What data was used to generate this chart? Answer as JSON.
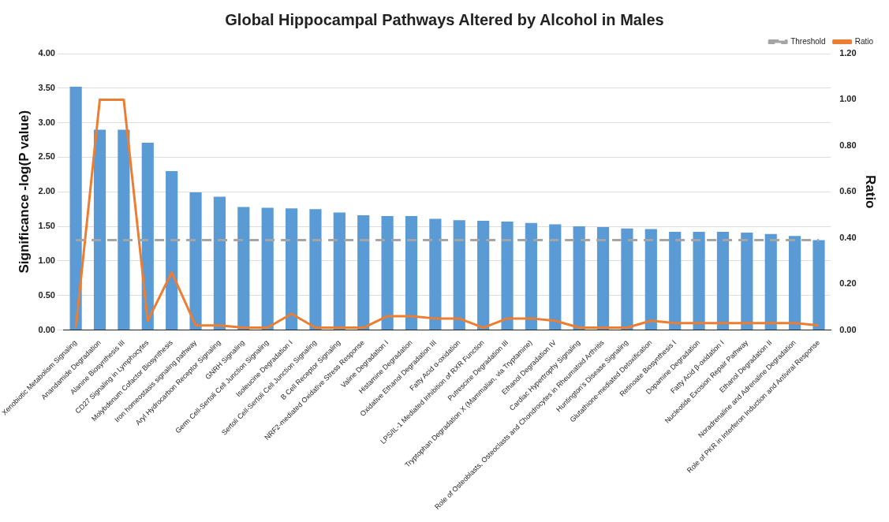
{
  "chart_data": {
    "type": "bar",
    "title": "Global Hippocampal Pathways Altered by Alcohol in Males",
    "ylabel": "Significance -log(P value)",
    "y2label": "Ratio",
    "categories": [
      "Xenobiotic Metabolism Signaling",
      "Anandamide Degradation",
      "Alanine Biosynthesis III",
      "CD27 Signaling in Lymphocytes",
      "Molybdenum Cofactor Biosynthesis",
      "Iron homeostasis signaling pathway",
      "Aryl Hydrocarbon Receptor Signaling",
      "GNRH Signaling",
      "Germ Cell-Sertoli Cell Junction Signaling",
      "Isoleucine Degradation I",
      "Sertoli Cell-Sertoli Cell Junction Signaling",
      "B Cell Receptor Signaling",
      "NRF2-mediated Oxidative Stress Response",
      "Valine Degradation I",
      "Histamine Degradation",
      "Oxidative Ethanol Degradation III",
      "Fatty Acid α-oxidation",
      "LPS/IL-1 Mediated Inhibition of RXR Function",
      "Putrescine Degradation III",
      "Tryptophan Degradation X (Mammalian, via Tryptamine)",
      "Ethanol Degradation IV",
      "Cardiac Hypertrophy Signaling",
      "Role of Osteoblasts, Osteoclasts and Chondrocytes in Rheumatoid Arthritis",
      "Huntington's Disease Signaling",
      "Glutathione-mediated Detoxification",
      "Retinoate Biosynthesis I",
      "Dopamine Degradation",
      "Fatty Acid β-oxidation I",
      "Nucleotide Excision Repair Pathway",
      "Ethanol Degradation II",
      "Noradrenaline and Adrenaline Degradation",
      "Role of PKR in Interferon Induction and Antiviral Response"
    ],
    "series": [
      {
        "color": "#5b9bd5",
        "values": [
          3.52,
          2.9,
          2.9,
          2.71,
          2.3,
          1.99,
          1.93,
          1.78,
          1.77,
          1.76,
          1.75,
          1.7,
          1.66,
          1.65,
          1.65,
          1.61,
          1.59,
          1.58,
          1.57,
          1.55,
          1.53,
          1.5,
          1.49,
          1.47,
          1.46,
          1.42,
          1.42,
          1.42,
          1.41,
          1.39,
          1.36,
          1.3
        ]
      },
      {
        "type": "line",
        "name": "Threshold",
        "color": "#a5a5a5",
        "line_style": "dashed",
        "values": [
          1.3,
          1.3,
          1.3,
          1.3,
          1.3,
          1.3,
          1.3,
          1.3,
          1.3,
          1.3,
          1.3,
          1.3,
          1.3,
          1.3,
          1.3,
          1.3,
          1.3,
          1.3,
          1.3,
          1.3,
          1.3,
          1.3,
          1.3,
          1.3,
          1.3,
          1.3,
          1.3,
          1.3,
          1.3,
          1.3,
          1.3,
          1.3
        ]
      },
      {
        "type": "line",
        "name": "Ratio",
        "color": "#ed7d31",
        "axis": "y2",
        "line_style": "solid",
        "values": [
          0.01,
          1,
          1,
          0.04,
          0.25,
          0.02,
          0.02,
          0.01,
          0.01,
          0.07,
          0.01,
          0.01,
          0.01,
          0.06,
          0.06,
          0.05,
          0.05,
          0.01,
          0.05,
          0.05,
          0.04,
          0.01,
          0.01,
          0.01,
          0.04,
          0.03,
          0.03,
          0.03,
          0.03,
          0.03,
          0.03,
          0.02
        ]
      }
    ],
    "ylim": [
      0,
      4
    ],
    "yticks": [
      {
        "value": 0,
        "label": "0.00"
      },
      {
        "value": 0.5,
        "label": "0.50"
      },
      {
        "value": 1,
        "label": "1.00"
      },
      {
        "value": 1.5,
        "label": "1.50"
      },
      {
        "value": 2,
        "label": "2.00"
      },
      {
        "value": 2.5,
        "label": "2.50"
      },
      {
        "value": 3,
        "label": "3.00"
      },
      {
        "value": 3.5,
        "label": "3.50"
      },
      {
        "value": 4,
        "label": "4.00"
      }
    ],
    "y2lim": [
      0,
      1.2
    ],
    "y2ticks": [
      {
        "value": 0,
        "label": "0.00"
      },
      {
        "value": 0.2,
        "label": "0.20"
      },
      {
        "value": 0.4,
        "label": "0.40"
      },
      {
        "value": 0.6,
        "label": "0.60"
      },
      {
        "value": 0.8,
        "label": "0.80"
      },
      {
        "value": 1,
        "label": "1.00"
      },
      {
        "value": 1.2,
        "label": "1.20"
      }
    ],
    "grid": "y",
    "legend": "top right",
    "marker": "none"
  }
}
